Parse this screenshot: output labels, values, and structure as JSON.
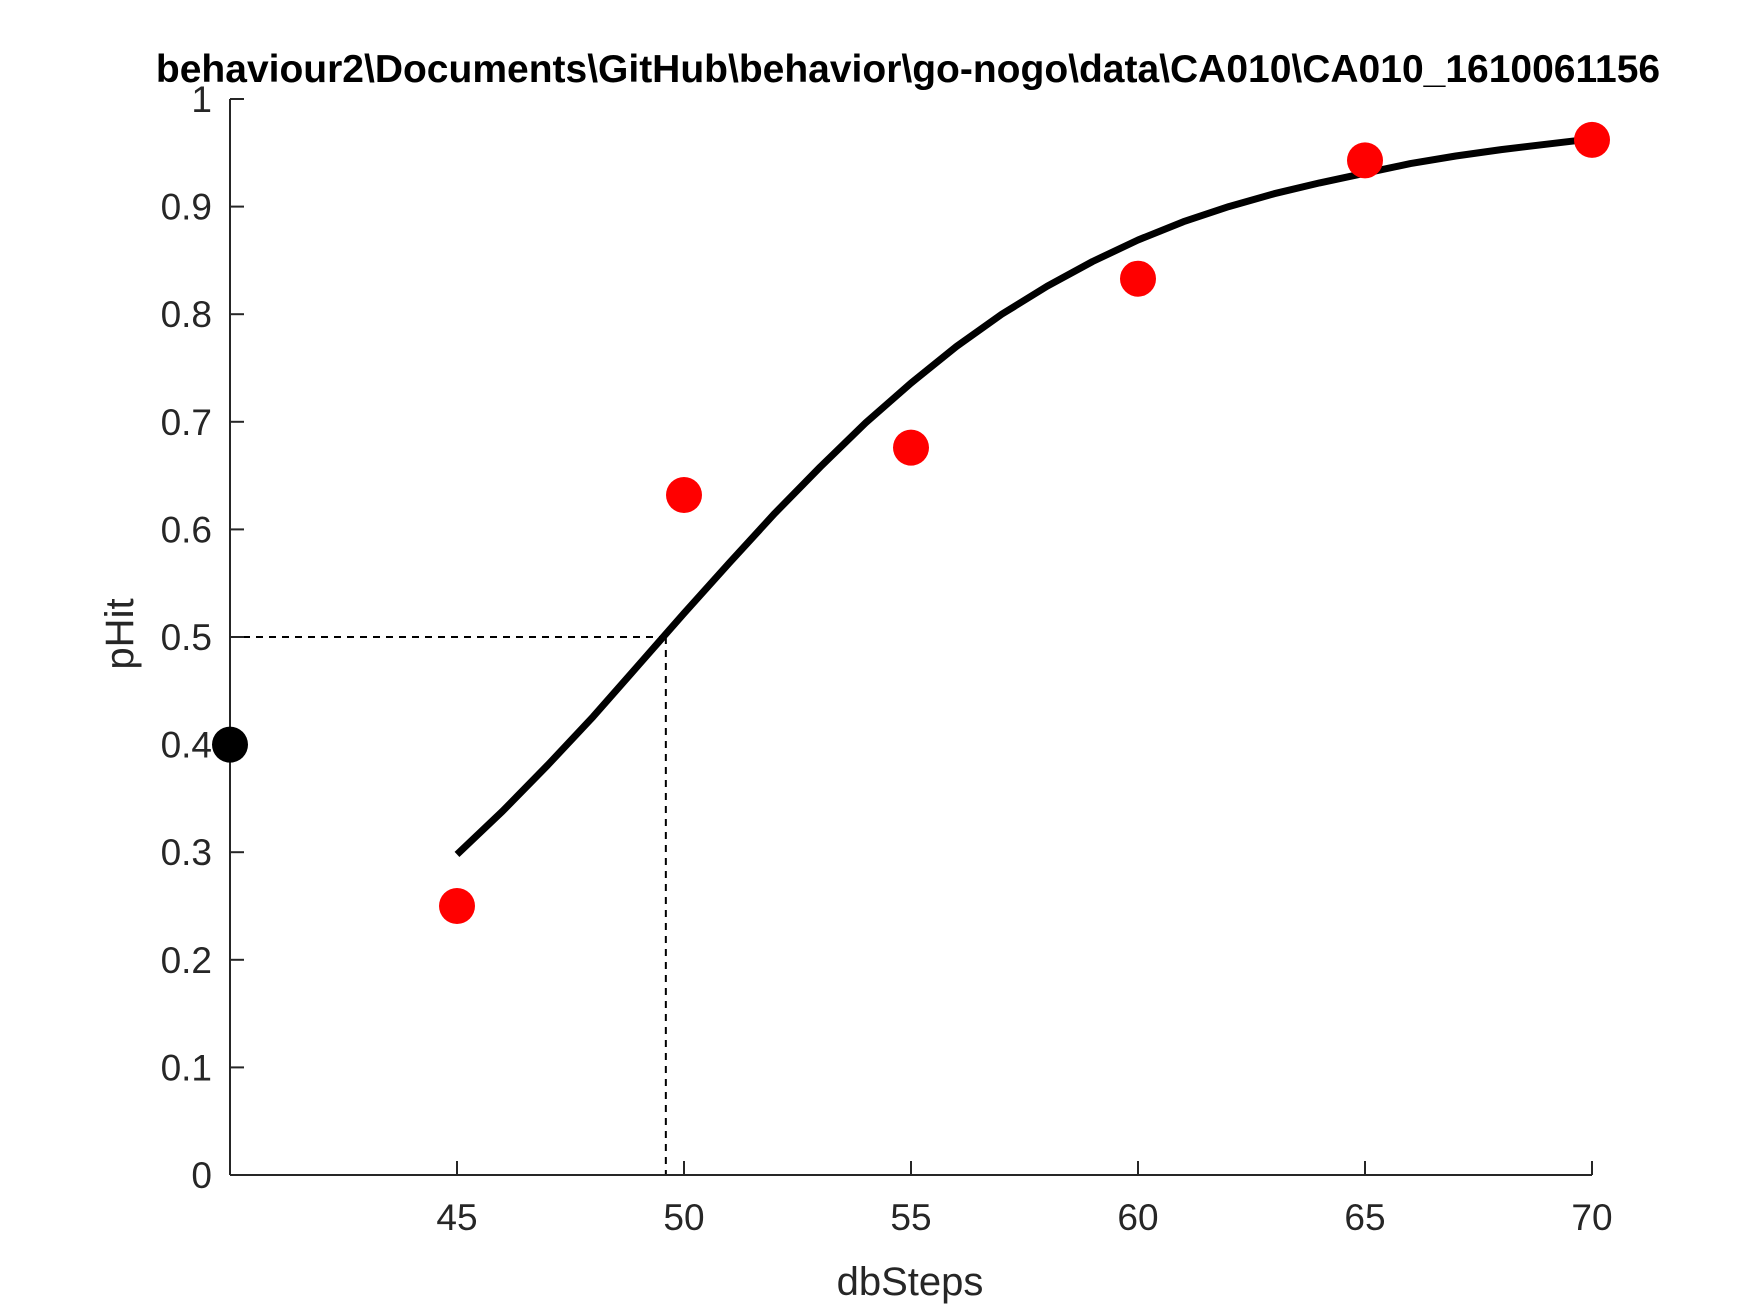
{
  "chart_data": {
    "type": "scatter",
    "title": "behaviour2\\Documents\\GitHub\\behavior\\go-nogo\\data\\CA010\\CA010_1610061156",
    "xlabel": "dbSteps",
    "ylabel": "pHit",
    "xlim": [
      40,
      70
    ],
    "ylim": [
      0,
      1
    ],
    "x_ticks": [
      "45",
      "50",
      "55",
      "60",
      "65",
      "70"
    ],
    "y_ticks": [
      "0",
      "0.1",
      "0.2",
      "0.3",
      "0.4",
      "0.5",
      "0.6",
      "0.7",
      "0.8",
      "0.9",
      "1"
    ],
    "grid": false,
    "series": [
      {
        "type": "scatter",
        "color": "#ff0000",
        "x": [
          45,
          50,
          55,
          60,
          65,
          70
        ],
        "y": [
          0.25,
          0.632,
          0.676,
          0.833,
          0.943,
          0.962
        ]
      },
      {
        "type": "scatter",
        "color": "#000000",
        "x": [
          40
        ],
        "y": [
          0.4
        ]
      },
      {
        "type": "line",
        "color": "#000000",
        "x": [
          45,
          46,
          47,
          48,
          49,
          50,
          51,
          52,
          53,
          54,
          55,
          56,
          57,
          58,
          59,
          60,
          61,
          62,
          63,
          64,
          65,
          66,
          67,
          68,
          69,
          70
        ],
        "y": [
          0.298,
          0.338,
          0.381,
          0.426,
          0.474,
          0.522,
          0.569,
          0.615,
          0.658,
          0.699,
          0.736,
          0.77,
          0.8,
          0.826,
          0.849,
          0.869,
          0.886,
          0.9,
          0.912,
          0.922,
          0.931,
          0.94,
          0.947,
          0.953,
          0.958,
          0.963
        ]
      }
    ],
    "annotations": [
      {
        "type": "threshold-dashed-lines",
        "x": 49.6,
        "y": 0.5,
        "color": "#000000"
      }
    ]
  }
}
